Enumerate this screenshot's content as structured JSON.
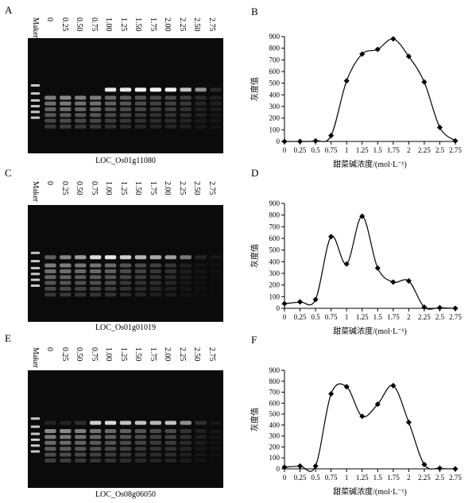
{
  "panels": [
    {
      "gel_letter": "A",
      "chart_letter": "B",
      "lanes": [
        "Maker",
        "0",
        "0.25",
        "0.50",
        "0.75",
        "1.00",
        "1.25",
        "1.50",
        "1.75",
        "2.00",
        "2.25",
        "2.50",
        "2.75"
      ],
      "gel_caption": "LOC_Os01g11080",
      "band_intensity": [
        0,
        0,
        0,
        0,
        0,
        0.9,
        0.9,
        0.95,
        0.95,
        0.95,
        0.75,
        0.55,
        0.12
      ],
      "smear_intensity": [
        0,
        0.55,
        0.6,
        0.55,
        0.55,
        0.45,
        0.4,
        0.35,
        0.3,
        0.3,
        0.25,
        0.15,
        0.1
      ]
    },
    {
      "gel_letter": "C",
      "chart_letter": "D",
      "lanes": [
        "Maker",
        "0",
        "0.25",
        "0.50",
        "0.75",
        "1.00",
        "1.25",
        "1.50",
        "1.75",
        "2.00",
        "2.25",
        "2.50",
        "2.75"
      ],
      "gel_caption": "LOC_Os01g01019",
      "band_intensity": [
        0,
        0.35,
        0.5,
        0.6,
        0.85,
        0.9,
        0.8,
        0.7,
        0.65,
        0.6,
        0.45,
        0.1,
        0.05
      ],
      "smear_intensity": [
        0,
        0.55,
        0.55,
        0.5,
        0.5,
        0.45,
        0.35,
        0.3,
        0.25,
        0.2,
        0.1,
        0.05,
        0.03
      ]
    },
    {
      "gel_letter": "E",
      "chart_letter": "F",
      "lanes": [
        "Maker",
        "0",
        "0.25",
        "0.50",
        "0.75",
        "1.00",
        "1.25",
        "1.50",
        "1.75",
        "2.00",
        "2.25",
        "2.50",
        "2.75"
      ],
      "gel_caption": "LOC_Os08g06050",
      "band_intensity": [
        0,
        0.1,
        0.1,
        0.15,
        0.8,
        0.85,
        0.75,
        0.75,
        0.7,
        0.75,
        0.55,
        0.15,
        0.05
      ],
      "smear_intensity": [
        0,
        0.6,
        0.6,
        0.55,
        0.5,
        0.45,
        0.4,
        0.35,
        0.3,
        0.3,
        0.2,
        0.1,
        0.05
      ]
    }
  ],
  "chart_data": [
    {
      "type": "line",
      "title": "",
      "xlabel": "甜菜碱浓度/(mol·L⁻¹)",
      "ylabel": "灰度值",
      "x_ticks": [
        "0",
        "0.25",
        "0.5",
        "0.75",
        "1",
        "1.25",
        "1.5",
        "1.75",
        "2",
        "2.25",
        "2.5",
        "2.75"
      ],
      "x": [
        0,
        0.25,
        0.5,
        0.75,
        1,
        1.25,
        1.5,
        1.75,
        2,
        2.25,
        2.5,
        2.75
      ],
      "y": [
        0,
        0,
        5,
        50,
        520,
        750,
        790,
        880,
        730,
        510,
        120,
        5
      ],
      "ylim": [
        0,
        900
      ],
      "y_ticks": [
        0,
        100,
        200,
        300,
        400,
        500,
        600,
        700,
        800,
        900
      ],
      "xlim": [
        0,
        2.75
      ]
    },
    {
      "type": "line",
      "title": "",
      "xlabel": "甜菜碱浓度/(mol·L⁻¹)",
      "ylabel": "灰度值",
      "x_ticks": [
        "0",
        "0.25",
        "0.5",
        "0.75",
        "1",
        "1.25",
        "1.5",
        "1.75",
        "2",
        "2.25",
        "2.5",
        "2.75"
      ],
      "x": [
        0,
        0.25,
        0.5,
        0.75,
        1,
        1.25,
        1.5,
        1.75,
        2,
        2.25,
        2.5,
        2.75
      ],
      "y": [
        40,
        55,
        75,
        615,
        380,
        790,
        345,
        225,
        235,
        10,
        5,
        0
      ],
      "ylim": [
        0,
        900
      ],
      "y_ticks": [
        0,
        100,
        200,
        300,
        400,
        500,
        600,
        700,
        800,
        900
      ],
      "xlim": [
        0,
        2.75
      ]
    },
    {
      "type": "line",
      "title": "",
      "xlabel": "甜菜碱浓度/(mol·L⁻¹)",
      "ylabel": "灰度值",
      "x_ticks": [
        "0",
        "0.25",
        "0.5",
        "0.75",
        "1",
        "1.25",
        "1.5",
        "1.75",
        "2",
        "2.25",
        "2.5",
        "2.75"
      ],
      "x": [
        0,
        0.25,
        0.5,
        0.75,
        1,
        1.25,
        1.5,
        1.75,
        2,
        2.25,
        2.5,
        2.75
      ],
      "y": [
        15,
        25,
        25,
        685,
        750,
        480,
        590,
        760,
        425,
        40,
        5,
        0
      ],
      "ylim": [
        0,
        900
      ],
      "y_ticks": [
        0,
        100,
        200,
        300,
        400,
        500,
        600,
        700,
        800,
        900
      ],
      "xlim": [
        0,
        2.75
      ]
    }
  ]
}
